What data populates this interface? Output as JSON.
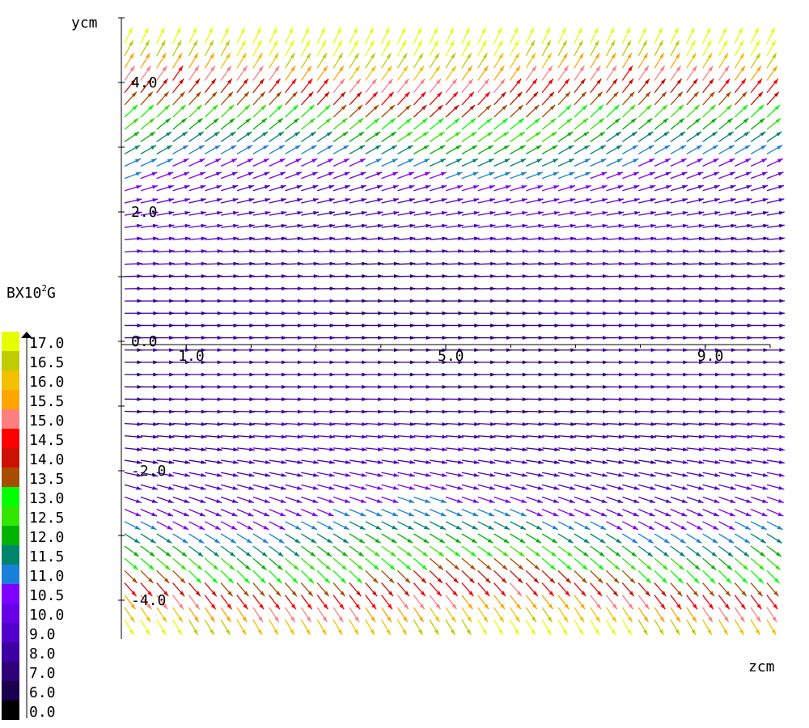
{
  "chart_data": {
    "type": "vector-field",
    "xlabel": "zcm",
    "ylabel": "ycm",
    "x_ticks": [
      "1.0",
      "5.0",
      "9.0"
    ],
    "y_ticks": [
      "4.0",
      "2.0",
      "0.0",
      "-2.0",
      "-4.0"
    ],
    "xlim": [
      0.0,
      10.0
    ],
    "ylim": [
      -4.6,
      5.0
    ],
    "colorbar": {
      "title": "BX10^2G",
      "title_main": "BX10",
      "title_sup": "2",
      "title_unit": "G",
      "labels": [
        "17.0",
        "16.5",
        "16.0",
        "15.5",
        "15.0",
        "14.5",
        "14.0",
        "13.5",
        "13.0",
        "12.5",
        "12.0",
        "11.5",
        "11.0",
        "10.5",
        "10.0",
        "9.0",
        "8.0",
        "7.0",
        "6.0",
        "0.0"
      ],
      "colors": [
        "#e6ff00",
        "#bfcc00",
        "#f2c200",
        "#ffa500",
        "#ff7f7f",
        "#ff0000",
        "#cc1100",
        "#a64d00",
        "#00ff00",
        "#33e600",
        "#00b300",
        "#00856b",
        "#1a80d9",
        "#8000ff",
        "#6600e6",
        "#5200cc",
        "#3d00a3",
        "#2e007a",
        "#1a004d",
        "#000000"
      ]
    }
  }
}
